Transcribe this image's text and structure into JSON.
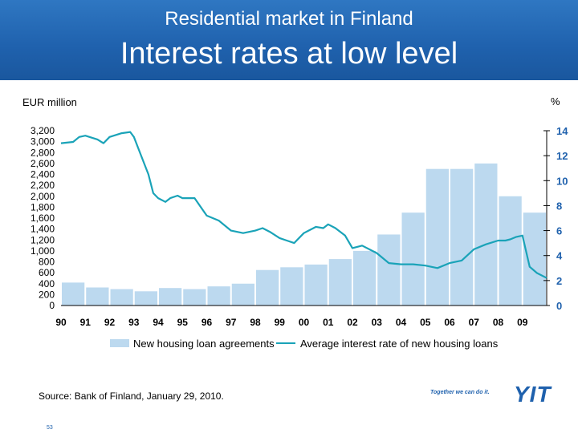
{
  "header": {
    "supertitle": "Residential market in Finland",
    "title": "Interest rates at low level"
  },
  "colors": {
    "header_bg": "#1f61ad",
    "bars": "#bcd9ef",
    "line": "#1aa3b8",
    "right_axis_text": "#1f61ad",
    "brand": "#1f61ad"
  },
  "chart_data": {
    "type": "bar",
    "xlabel": "",
    "ylabel_left": "EUR million",
    "ylabel_right": "%",
    "x_tick_labels": [
      "90",
      "91",
      "92",
      "93",
      "94",
      "95",
      "96",
      "97",
      "98",
      "99",
      "00",
      "01",
      "02",
      "03",
      "04",
      "05",
      "06",
      "07",
      "08",
      "09"
    ],
    "y_left_ticks": [
      "0",
      "200",
      "400",
      "600",
      "800",
      "1,000",
      "1,200",
      "1,400",
      "1,600",
      "1,800",
      "2,000",
      "2,200",
      "2,400",
      "2,600",
      "2,800",
      "3,000",
      "3,200"
    ],
    "y_right_ticks": [
      "0",
      "2",
      "4",
      "6",
      "8",
      "10",
      "12",
      "14"
    ],
    "ylim_left": [
      0,
      3200
    ],
    "ylim_right": [
      0,
      14
    ],
    "grid": false,
    "legend_position": "bottom",
    "series": [
      {
        "name": "New housing loan agreements",
        "type": "bar",
        "axis": "left",
        "x": [
          1990,
          1991,
          1992,
          1993,
          1994,
          1995,
          1996,
          1997,
          1998,
          1999,
          2000,
          2001,
          2002,
          2003,
          2004,
          2005,
          2006,
          2007,
          2008,
          2009,
          2010
        ],
        "values": [
          420,
          330,
          300,
          260,
          320,
          300,
          350,
          400,
          650,
          700,
          750,
          850,
          1000,
          1300,
          1700,
          2500,
          2500,
          2600,
          2000,
          1700,
          1650
        ]
      },
      {
        "name": "Average interest rate of new housing loans",
        "type": "line",
        "axis": "right",
        "x": [
          1990,
          1990.5,
          1990.75,
          1991,
          1991.5,
          1991.75,
          1992,
          1992.5,
          1992.85,
          1993,
          1993.3,
          1993.6,
          1993.8,
          1994,
          1994.3,
          1994.5,
          1994.8,
          1995,
          1995.5,
          1996,
          1996.5,
          1997,
          1997.5,
          1998,
          1998.3,
          1998.6,
          1999,
          1999.3,
          1999.6,
          2000,
          2000.5,
          2000.8,
          2001,
          2001.3,
          2001.7,
          2002,
          2002.4,
          2003,
          2003.5,
          2004,
          2004.5,
          2005,
          2005.5,
          2006,
          2006.5,
          2007,
          2007.5,
          2008,
          2008.3,
          2008.5,
          2008.75,
          2009,
          2009.3,
          2009.6,
          2010
        ],
        "values": [
          13.0,
          13.1,
          13.5,
          13.6,
          13.3,
          13.0,
          13.5,
          13.8,
          13.9,
          13.5,
          12.0,
          10.5,
          9.0,
          8.6,
          8.3,
          8.6,
          8.8,
          8.6,
          8.6,
          7.2,
          6.8,
          6.0,
          5.8,
          6.0,
          6.2,
          5.9,
          5.4,
          5.2,
          5.0,
          5.8,
          6.3,
          6.2,
          6.5,
          6.2,
          5.6,
          4.6,
          4.8,
          4.2,
          3.4,
          3.3,
          3.3,
          3.2,
          3.0,
          3.4,
          3.6,
          4.5,
          4.9,
          5.2,
          5.2,
          5.3,
          5.5,
          5.6,
          3.1,
          2.6,
          2.2
        ]
      }
    ]
  },
  "footer": {
    "source": "Source: Bank of Finland, January 29, 2010.",
    "page_number": "53",
    "tagline": "Together we can do it.",
    "logo_text": "YIT"
  }
}
